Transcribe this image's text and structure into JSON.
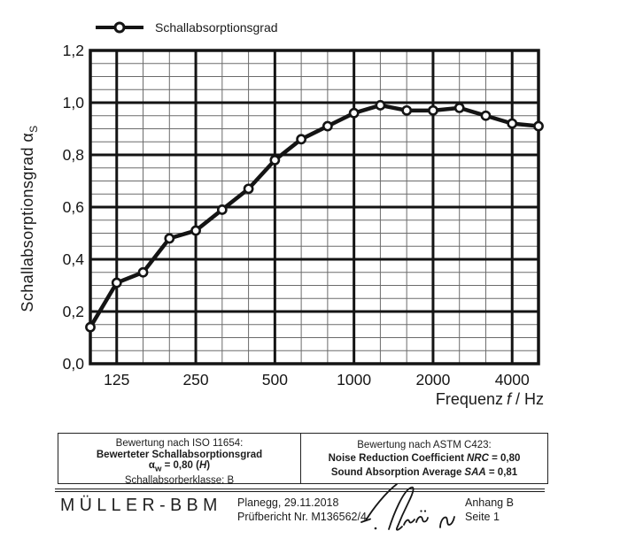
{
  "chart_data": {
    "type": "line",
    "title": "",
    "x_scale": "log (third-octave bands)",
    "x": [
      100,
      125,
      160,
      200,
      250,
      315,
      400,
      500,
      630,
      800,
      1000,
      1250,
      1600,
      2000,
      2500,
      3150,
      4000,
      5000
    ],
    "series": [
      {
        "name": "Schallabsorptionsgrad",
        "values": [
          0.14,
          0.31,
          0.35,
          0.48,
          0.51,
          0.59,
          0.67,
          0.78,
          0.86,
          0.91,
          0.96,
          0.99,
          0.97,
          0.97,
          0.98,
          0.95,
          0.92,
          0.91
        ]
      }
    ],
    "ylim": [
      0,
      1.2
    ],
    "y_ticks": [
      {
        "v": 0.0,
        "label": "0,0"
      },
      {
        "v": 0.2,
        "label": "0,2"
      },
      {
        "v": 0.4,
        "label": "0,4"
      },
      {
        "v": 0.6,
        "label": "0,6"
      },
      {
        "v": 0.8,
        "label": "0,8"
      },
      {
        "v": 1.0,
        "label": "1,0"
      },
      {
        "v": 1.2,
        "label": "1,2"
      }
    ],
    "x_ticks": [
      {
        "f": 125,
        "label": "125"
      },
      {
        "f": 250,
        "label": "250"
      },
      {
        "f": 500,
        "label": "500"
      },
      {
        "f": 1000,
        "label": "1000"
      },
      {
        "f": 2000,
        "label": "2000"
      },
      {
        "f": 4000,
        "label": "4000"
      }
    ],
    "xlabel": {
      "prefix": "Frequenz",
      "symbol": "f",
      "suffix": " / Hz"
    },
    "ylabel": {
      "text": "Schallabsorptionsgrad α",
      "sub": "S"
    },
    "grid": "major+minor, black on white",
    "legend_position": "top-left"
  },
  "rating_iso": {
    "header": "Bewertung nach ISO 11654:",
    "line_bold": "Bewerteter Schallabsorptionsgrad",
    "alpha_symbol": "α",
    "alpha_sub": "w",
    "alpha_eq": " = 0,80 (",
    "alpha_class": "H",
    "alpha_close": ")",
    "line_class": "Schallabsorberklasse: B"
  },
  "rating_astm": {
    "header": "Bewertung nach ASTM C423:",
    "nrc_text": "Noise Reduction Coefficient",
    "nrc_symbol": "NRC",
    "nrc_value": " = 0,80",
    "saa_text": "Sound Absorption Average",
    "saa_symbol": "SAA",
    "saa_value": " = 0,81"
  },
  "footer": {
    "logo": "MÜLLER-BBM",
    "place_date": "Planegg, 29.11.2018",
    "report_no": "Prüfbericht Nr. M136562/4",
    "annex": "Anhang B",
    "page": "Seite 1"
  }
}
